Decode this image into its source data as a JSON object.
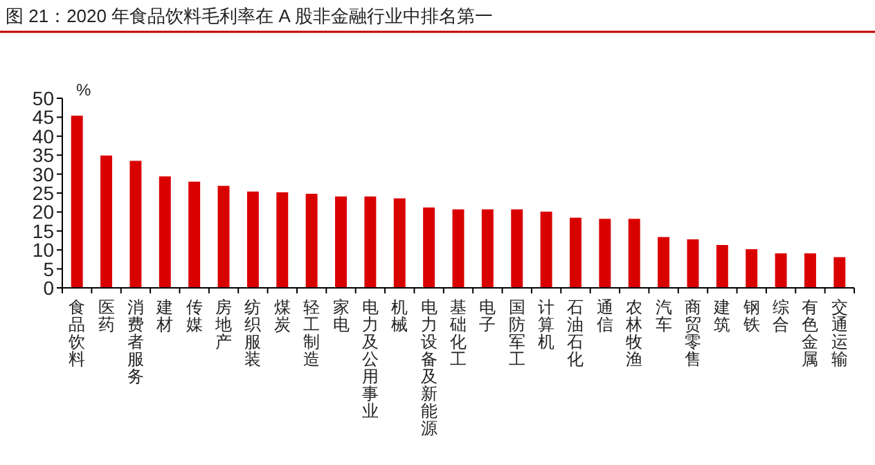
{
  "chart_data": {
    "type": "bar",
    "title": "图 21：2020 年食品饮料毛利率在 A 股非金融行业中排名第一",
    "ylabel": "%",
    "categories": [
      "食品饮料",
      "医药",
      "消费者服务",
      "建材",
      "传媒",
      "房地产",
      "纺织服装",
      "煤炭",
      "轻工制造",
      "家电",
      "电力及公用事业",
      "机械",
      "电力设备及新能源",
      "基础化工",
      "电子",
      "国防军工",
      "计算机",
      "石油石化",
      "通信",
      "农林牧渔",
      "汽车",
      "商贸零售",
      "建筑",
      "钢铁",
      "综合",
      "有色金属",
      "交通运输"
    ],
    "values": [
      45.4,
      34.9,
      33.5,
      29.4,
      28.0,
      26.9,
      25.4,
      25.2,
      24.8,
      24.1,
      24.1,
      23.6,
      21.2,
      20.7,
      20.7,
      20.7,
      20.1,
      18.5,
      18.2,
      18.2,
      13.4,
      12.8,
      11.3,
      10.2,
      9.1,
      9.1,
      8.1
    ],
    "color": "#d90000",
    "ylim": [
      0,
      50
    ],
    "yticks": [
      0,
      5,
      10,
      15,
      20,
      25,
      30,
      35,
      40,
      45,
      50
    ],
    "grid": false
  }
}
